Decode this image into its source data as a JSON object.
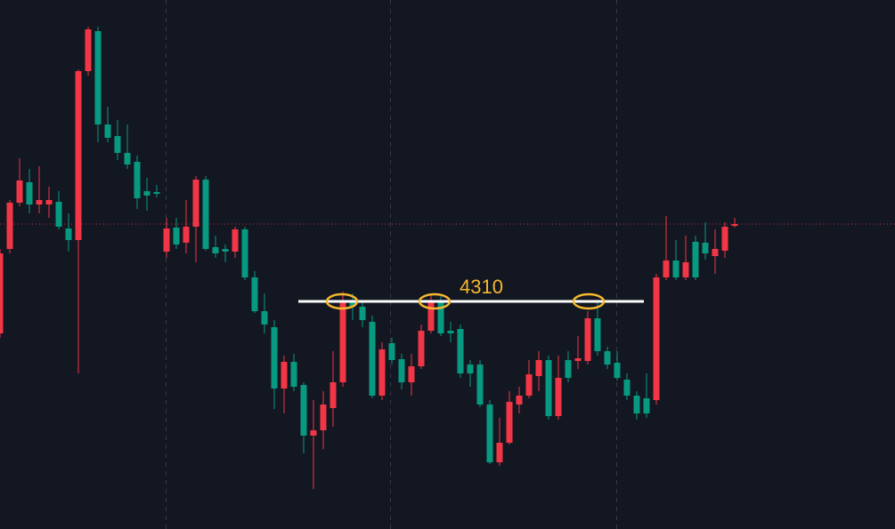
{
  "chart_data": {
    "type": "candlestick",
    "open": [
      4274,
      4369,
      4421,
      4444,
      4419,
      4419,
      4422,
      4392,
      4379,
      4569,
      4614,
      4509,
      4496,
      4477,
      4467,
      4434,
      4433,
      4366,
      4393,
      4376,
      4394,
      4447,
      4371,
      4369,
      4366,
      4391,
      4337,
      4299,
      4281,
      4212,
      4242,
      4216,
      4159,
      4165,
      4190,
      4219,
      4311,
      4304,
      4287,
      4204,
      4263,
      4245,
      4219,
      4237,
      4277,
      4309,
      4277,
      4279,
      4239,
      4239,
      4194,
      4129,
      4151,
      4194,
      4204,
      4226,
      4244,
      4181,
      4244,
      4243,
      4243,
      4291,
      4254,
      4241,
      4222,
      4204,
      4201,
      4199,
      4337,
      4356,
      4337,
      4377,
      4376,
      4361,
      4367,
      4395
    ],
    "high": [
      4369,
      4424,
      4471,
      4459,
      4462,
      4439,
      4434,
      4409,
      4571,
      4619,
      4619,
      4529,
      4514,
      4509,
      4474,
      4449,
      4441,
      4404,
      4404,
      4424,
      4451,
      4451,
      4384,
      4374,
      4394,
      4394,
      4344,
      4319,
      4289,
      4249,
      4251,
      4219,
      4199,
      4209,
      4254,
      4321,
      4319,
      4311,
      4294,
      4264,
      4269,
      4251,
      4251,
      4284,
      4317,
      4316,
      4287,
      4284,
      4244,
      4244,
      4199,
      4179,
      4209,
      4214,
      4244,
      4254,
      4249,
      4249,
      4254,
      4271,
      4299,
      4309,
      4259,
      4254,
      4229,
      4209,
      4229,
      4341,
      4406,
      4379,
      4384,
      4384,
      4399,
      4391,
      4399,
      4404
    ],
    "low": [
      4269,
      4364,
      4417,
      4409,
      4409,
      4404,
      4391,
      4366,
      4229,
      4564,
      4489,
      4489,
      4469,
      4459,
      4414,
      4412,
      4427,
      4359,
      4369,
      4364,
      4354,
      4367,
      4359,
      4354,
      4359,
      4334,
      4297,
      4274,
      4189,
      4184,
      4209,
      4139,
      4099,
      4144,
      4169,
      4214,
      4289,
      4281,
      4201,
      4199,
      4239,
      4211,
      4204,
      4234,
      4274,
      4271,
      4264,
      4224,
      4214,
      4191,
      4127,
      4125,
      4149,
      4184,
      4201,
      4209,
      4177,
      4177,
      4219,
      4234,
      4239,
      4249,
      4234,
      4221,
      4199,
      4177,
      4179,
      4194,
      4334,
      4334,
      4334,
      4334,
      4357,
      4341,
      4359,
      4393
    ],
    "close": [
      4364,
      4421,
      4446,
      4419,
      4424,
      4424,
      4394,
      4379,
      4569,
      4616,
      4509,
      4494,
      4477,
      4464,
      4426,
      4429,
      4431,
      4392,
      4374,
      4394,
      4447,
      4369,
      4364,
      4366,
      4391,
      4337,
      4299,
      4284,
      4212,
      4242,
      4214,
      4159,
      4165,
      4194,
      4219,
      4311,
      4304,
      4289,
      4204,
      4256,
      4244,
      4219,
      4237,
      4277,
      4309,
      4274,
      4274,
      4229,
      4229,
      4194,
      4129,
      4151,
      4197,
      4204,
      4228,
      4244,
      4181,
      4224,
      4224,
      4246,
      4291,
      4254,
      4239,
      4224,
      4204,
      4184,
      4184,
      4337,
      4356,
      4337,
      4354,
      4337,
      4364,
      4369,
      4394,
      4397
    ],
    "up_color": "#f23645",
    "down_color": "#089981",
    "ylim": [
      4054,
      4649
    ],
    "level": 4310,
    "level_color": "#ffffff",
    "level_label_color": "#f5b82e",
    "last_price": 4397,
    "last_price_color": "#f23645"
  }
}
